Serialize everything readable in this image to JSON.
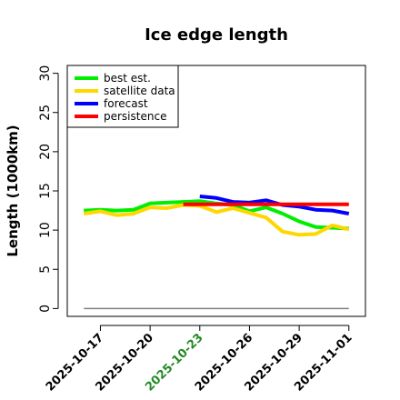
{
  "chart_data": {
    "type": "line",
    "title": "Ice edge length",
    "ylabel": "Length (1000km)",
    "xlabel": "",
    "xlim": [
      "2025-10-15",
      "2025-11-02"
    ],
    "ylim": [
      -1,
      31
    ],
    "yticks": [
      0,
      5,
      10,
      15,
      20,
      25,
      30
    ],
    "xticks": [
      {
        "date": "2025-10-17",
        "label": "2025-10-17",
        "color": "#000000"
      },
      {
        "date": "2025-10-20",
        "label": "2025-10-20",
        "color": "#000000"
      },
      {
        "date": "2025-10-23",
        "label": "2025-10-23",
        "color": "#228B22"
      },
      {
        "date": "2025-10-26",
        "label": "2025-10-26",
        "color": "#000000"
      },
      {
        "date": "2025-10-29",
        "label": "2025-10-29",
        "color": "#000000"
      },
      {
        "date": "2025-11-01",
        "label": "2025-11-01",
        "color": "#000000"
      }
    ],
    "grid": false,
    "legend_position": "top-left",
    "series": [
      {
        "name": "best est.",
        "color": "#00ee00",
        "points": [
          [
            "2025-10-16",
            12.5
          ],
          [
            "2025-10-17",
            12.6
          ],
          [
            "2025-10-18",
            12.5
          ],
          [
            "2025-10-19",
            12.6
          ],
          [
            "2025-10-20",
            13.4
          ],
          [
            "2025-10-21",
            13.5
          ],
          [
            "2025-10-22",
            13.6
          ],
          [
            "2025-10-23",
            13.7
          ],
          [
            "2025-10-24",
            13.4
          ],
          [
            "2025-10-25",
            13.2
          ],
          [
            "2025-10-26",
            12.4
          ],
          [
            "2025-10-27",
            12.9
          ],
          [
            "2025-10-28",
            12.1
          ],
          [
            "2025-10-29",
            11.1
          ],
          [
            "2025-10-30",
            10.4
          ],
          [
            "2025-10-31",
            10.3
          ],
          [
            "2025-11-01",
            10.2
          ]
        ]
      },
      {
        "name": "satellite data",
        "color": "#ffd700",
        "points": [
          [
            "2025-10-16",
            12.1
          ],
          [
            "2025-10-17",
            12.4
          ],
          [
            "2025-10-18",
            11.9
          ],
          [
            "2025-10-19",
            12.1
          ],
          [
            "2025-10-20",
            12.9
          ],
          [
            "2025-10-21",
            12.8
          ],
          [
            "2025-10-22",
            13.2
          ],
          [
            "2025-10-23",
            13.1
          ],
          [
            "2025-10-24",
            12.3
          ],
          [
            "2025-10-25",
            12.8
          ],
          [
            "2025-10-26",
            12.2
          ],
          [
            "2025-10-27",
            11.6
          ],
          [
            "2025-10-28",
            9.8
          ],
          [
            "2025-10-29",
            9.4
          ],
          [
            "2025-10-30",
            9.5
          ],
          [
            "2025-10-31",
            10.6
          ],
          [
            "2025-11-01",
            10.1
          ]
        ]
      },
      {
        "name": "forecast",
        "color": "#0000ff",
        "points": [
          [
            "2025-10-23",
            14.3
          ],
          [
            "2025-10-24",
            14.1
          ],
          [
            "2025-10-25",
            13.6
          ],
          [
            "2025-10-26",
            13.5
          ],
          [
            "2025-10-27",
            13.8
          ],
          [
            "2025-10-28",
            13.2
          ],
          [
            "2025-10-29",
            13.0
          ],
          [
            "2025-10-30",
            12.6
          ],
          [
            "2025-10-31",
            12.5
          ],
          [
            "2025-11-01",
            12.1
          ]
        ]
      },
      {
        "name": "persistence",
        "color": "#ff0000",
        "points": [
          [
            "2025-10-22",
            13.3
          ],
          [
            "2025-10-23",
            13.3
          ],
          [
            "2025-10-24",
            13.3
          ],
          [
            "2025-10-25",
            13.3
          ],
          [
            "2025-10-26",
            13.3
          ],
          [
            "2025-10-27",
            13.3
          ],
          [
            "2025-10-28",
            13.3
          ],
          [
            "2025-10-29",
            13.3
          ],
          [
            "2025-10-30",
            13.3
          ],
          [
            "2025-10-31",
            13.3
          ],
          [
            "2025-11-01",
            13.3
          ]
        ]
      }
    ],
    "reference_line": {
      "value": 0,
      "from": "2025-10-16",
      "to": "2025-11-01",
      "color": "#808080"
    }
  }
}
